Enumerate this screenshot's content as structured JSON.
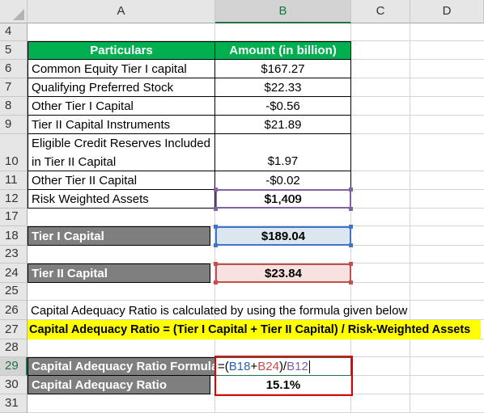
{
  "columns": [
    "A",
    "B",
    "C",
    "D"
  ],
  "rows": {
    "r4": "4",
    "r5": "5",
    "r6": "6",
    "r7": "7",
    "r8": "8",
    "r9": "9",
    "r10": "10",
    "r11": "11",
    "r12": "12",
    "r17": "17",
    "r18": "18",
    "r23": "23",
    "r24": "24",
    "r25": "25",
    "r26": "26",
    "r27": "27",
    "r28": "28",
    "r29": "29",
    "r30": "30",
    "r31": "31"
  },
  "table": {
    "header_particulars": "Particulars",
    "header_amount": "Amount (in billion)",
    "items": [
      {
        "label": "Common Equity Tier I capital",
        "value": "$167.27"
      },
      {
        "label": "Qualifying Preferred Stock",
        "value": "$22.33"
      },
      {
        "label": "Other Tier I Capital",
        "value": "-$0.56"
      },
      {
        "label": "Tier II Capital Instruments",
        "value": "$21.89"
      },
      {
        "label_line1": "Eligible Credit Reserves Included",
        "label_line2": "in Tier II Capital",
        "value": "$1.97"
      },
      {
        "label": "Other Tier II Capital",
        "value": "-$0.02"
      },
      {
        "label": "Risk Weighted Assets",
        "value": "$1,409"
      }
    ]
  },
  "tier1": {
    "label": "Tier I Capital",
    "value": "$189.04"
  },
  "tier2": {
    "label": "Tier II Capital",
    "value": "$23.84"
  },
  "note": "Capital Adequacy Ratio is calculated by using the formula given below",
  "formula_text": "Capital Adequacy Ratio = (Tier I Capital + Tier II Capital) / Risk-Weighted Assets",
  "formula_row": {
    "label": "Capital Adequacy Ratio Formula",
    "parts": [
      "=(",
      "B18",
      "+",
      "B24",
      ")/",
      "B12"
    ]
  },
  "result_row": {
    "label": "Capital Adequacy Ratio",
    "value": "15.1%"
  },
  "colors": {
    "header_green": "#00b050",
    "dark_grey": "#7f7f7f",
    "highlight_yellow": "#ffff00",
    "ref_blue": "#4472c4",
    "ref_red": "#c0504d",
    "ref_purple": "#8064a2",
    "outline_red": "#e00000"
  }
}
